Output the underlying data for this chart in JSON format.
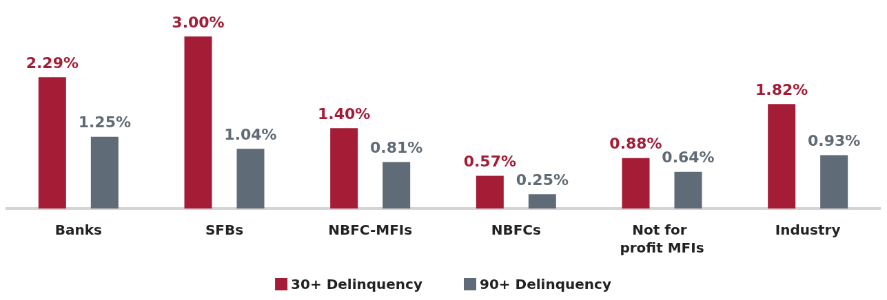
{
  "chart_data": {
    "type": "bar",
    "categories": [
      "Banks",
      "SFBs",
      "NBFC-MFIs",
      "NBFCs",
      "Not for profit MFIs",
      "Industry"
    ],
    "series": [
      {
        "name": "30+ Delinquency",
        "color": "#a51c36",
        "values": [
          2.29,
          3.0,
          1.4,
          0.57,
          0.88,
          1.82
        ],
        "value_labels": [
          "2.29%",
          "3.00%",
          "1.40%",
          "0.57%",
          "0.88%",
          "1.82%"
        ]
      },
      {
        "name": "90+ Delinquency",
        "color": "#5f6b76",
        "values": [
          1.25,
          1.04,
          0.81,
          0.25,
          0.64,
          0.93
        ],
        "value_labels": [
          "1.25%",
          "1.04%",
          "0.81%",
          "0.25%",
          "0.64%",
          "0.93%"
        ]
      }
    ],
    "legend": "bottom"
  }
}
